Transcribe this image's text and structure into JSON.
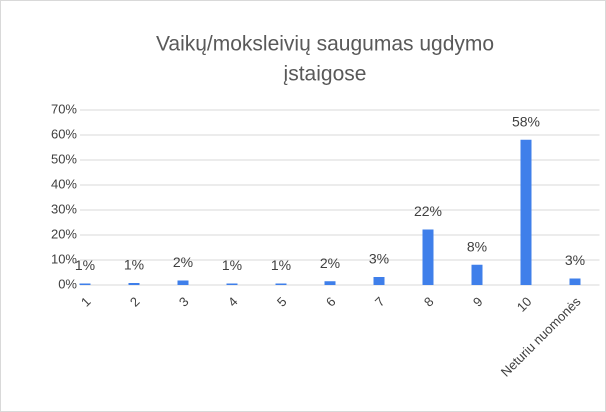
{
  "chart_data": {
    "type": "bar",
    "title": [
      "Vaikų/moksleivių saugumas ugdymo",
      "įstaigose"
    ],
    "categories": [
      "1",
      "2",
      "3",
      "4",
      "5",
      "6",
      "7",
      "8",
      "9",
      "10",
      "Neturiu nuomonės"
    ],
    "values": [
      0.6,
      0.8,
      1.8,
      0.6,
      0.6,
      1.5,
      3.2,
      22.2,
      8.1,
      58.1,
      2.6
    ],
    "value_labels": [
      "1%",
      "1%",
      "2%",
      "1%",
      "1%",
      "2%",
      "3%",
      "22%",
      "8%",
      "58%",
      "3%"
    ],
    "color": "#3f7fea",
    "ylim": [
      0,
      70
    ],
    "yticks": [
      {
        "value": 0,
        "label": "0%"
      },
      {
        "value": 10,
        "label": "10%"
      },
      {
        "value": 20,
        "label": "20%"
      },
      {
        "value": 30,
        "label": "30%"
      },
      {
        "value": 40,
        "label": "40%"
      },
      {
        "value": 50,
        "label": "50%"
      },
      {
        "value": 60,
        "label": "60%"
      },
      {
        "value": 70,
        "label": "70%"
      }
    ],
    "grid": true
  }
}
